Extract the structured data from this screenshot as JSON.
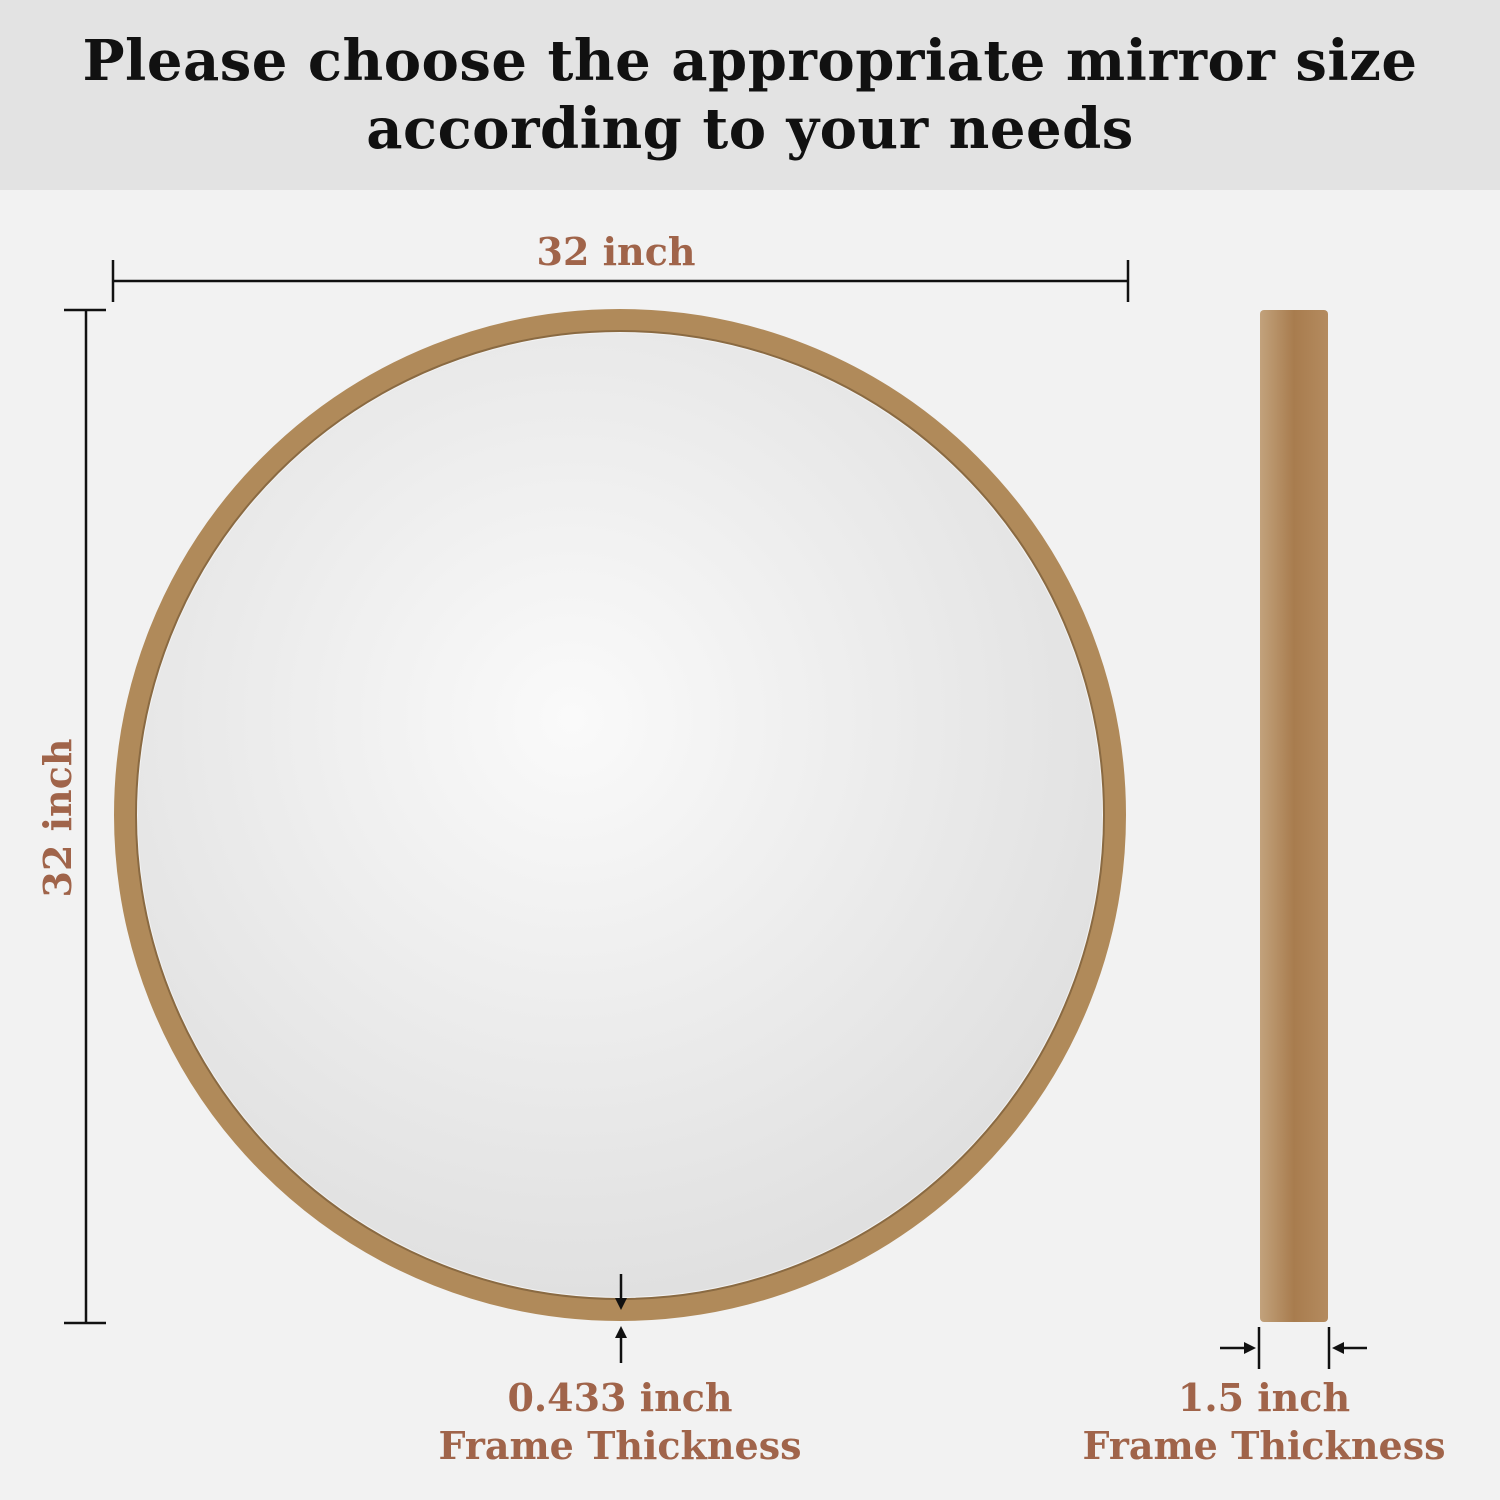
{
  "header": {
    "line1": "Please choose the appropriate mirror size",
    "line2": "according to your needs"
  },
  "dimensions": {
    "width": "32 inch",
    "height": "32 inch",
    "front_thickness_value": "0.433 inch",
    "front_thickness_label": "Frame Thickness",
    "side_thickness_value": "1.5 inch",
    "side_thickness_label": "Frame Thickness"
  },
  "colors": {
    "label": "#a0644a",
    "frame": "#b08a5a",
    "header_bg": "#e3e3e3",
    "background": "#f2f2f2"
  }
}
